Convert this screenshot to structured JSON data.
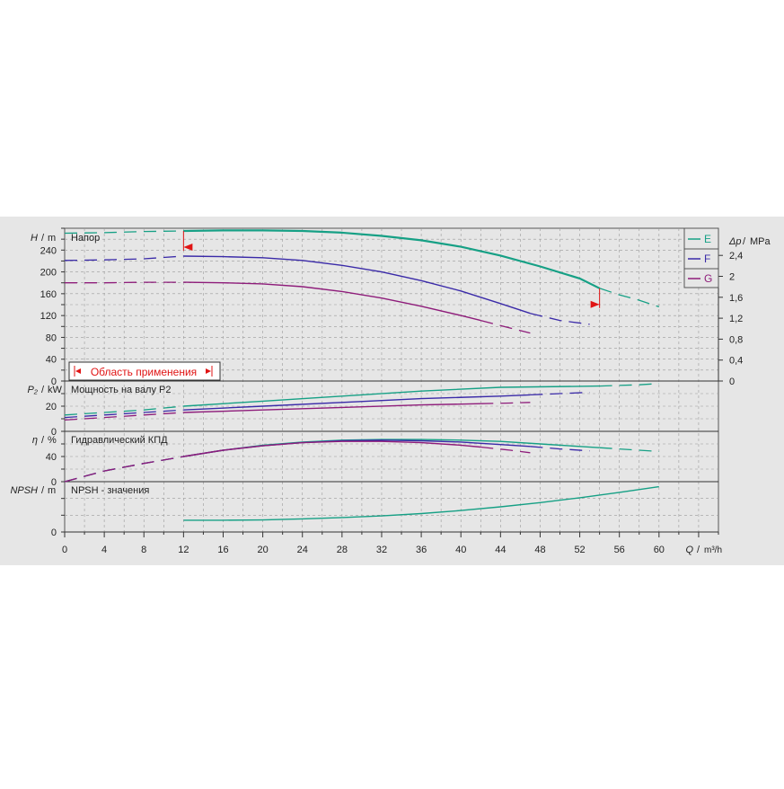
{
  "chart_data": {
    "type": "line",
    "x": {
      "label": "Q",
      "unit": "m³/h",
      "range": [
        0,
        66
      ],
      "ticks": [
        0,
        4,
        8,
        12,
        16,
        20,
        24,
        28,
        32,
        36,
        40,
        44,
        48,
        52,
        56,
        60
      ]
    },
    "legend": {
      "placement": "top-right",
      "items": [
        {
          "name": "E",
          "color": "#16a085"
        },
        {
          "name": "F",
          "color": "#3a2aa8"
        },
        {
          "name": "G",
          "color": "#8e1c7a"
        }
      ]
    },
    "panels": {
      "head": {
        "title": "Напор",
        "ylabel": "H",
        "yunit": "m",
        "ylim": [
          0,
          280
        ],
        "yticks": [
          0,
          40,
          80,
          120,
          160,
          200,
          240
        ],
        "right_axis": {
          "label": "Δp",
          "unit": "MPa",
          "ticks": [
            "0",
            "0,4",
            "0,8",
            "1,2",
            "1,6",
            "2",
            "2,4"
          ]
        },
        "range_box": "Область применения",
        "operating_range": [
          12,
          54
        ],
        "series": [
          {
            "name": "E",
            "solid": [
              [
                12,
                275
              ],
              [
                16,
                276
              ],
              [
                20,
                276
              ],
              [
                24,
                275
              ],
              [
                28,
                272
              ],
              [
                32,
                266
              ],
              [
                36,
                258
              ],
              [
                40,
                246
              ],
              [
                44,
                230
              ],
              [
                48,
                210
              ],
              [
                52,
                188
              ],
              [
                54,
                170
              ]
            ],
            "dashed_left": [
              [
                0,
                271
              ],
              [
                4,
                272
              ],
              [
                8,
                274
              ],
              [
                12,
                275
              ]
            ],
            "dashed_right": [
              [
                54,
                170
              ],
              [
                56,
                158
              ],
              [
                58,
                148
              ],
              [
                60,
                136
              ]
            ]
          },
          {
            "name": "F",
            "solid": [
              [
                12,
                229
              ],
              [
                16,
                228
              ],
              [
                20,
                226
              ],
              [
                24,
                221
              ],
              [
                28,
                212
              ],
              [
                32,
                200
              ],
              [
                36,
                184
              ],
              [
                40,
                165
              ],
              [
                44,
                142
              ],
              [
                47,
                124
              ]
            ],
            "dashed_left": [
              [
                0,
                221
              ],
              [
                4,
                222
              ],
              [
                8,
                224
              ],
              [
                12,
                229
              ]
            ],
            "dashed_right": [
              [
                47,
                124
              ],
              [
                50,
                111
              ],
              [
                53,
                104
              ]
            ]
          },
          {
            "name": "G",
            "solid": [
              [
                12,
                181
              ],
              [
                16,
                180
              ],
              [
                20,
                178
              ],
              [
                24,
                173
              ],
              [
                28,
                164
              ],
              [
                32,
                152
              ],
              [
                36,
                137
              ],
              [
                40,
                120
              ],
              [
                42,
                111
              ]
            ],
            "dashed_left": [
              [
                0,
                180
              ],
              [
                4,
                180
              ],
              [
                8,
                181
              ],
              [
                12,
                181
              ]
            ],
            "dashed_right": [
              [
                42,
                111
              ],
              [
                45,
                97
              ],
              [
                47,
                88
              ]
            ]
          }
        ]
      },
      "power": {
        "title": "Мощность на валу P2",
        "ylabel": "P₂",
        "yunit": "kW",
        "ylim": [
          0,
          40
        ],
        "yticks": [
          0,
          20
        ],
        "series": [
          {
            "name": "E",
            "solid": [
              [
                12,
                20
              ],
              [
                20,
                24
              ],
              [
                28,
                28
              ],
              [
                36,
                32
              ],
              [
                44,
                35
              ],
              [
                54,
                36
              ]
            ],
            "dashed_left": [
              [
                0,
                13
              ],
              [
                4,
                15
              ],
              [
                8,
                17
              ],
              [
                12,
                20
              ]
            ],
            "dashed_right": [
              [
                54,
                36
              ],
              [
                58,
                37
              ],
              [
                60,
                38
              ]
            ]
          },
          {
            "name": "F",
            "solid": [
              [
                12,
                17
              ],
              [
                20,
                20
              ],
              [
                28,
                23
              ],
              [
                36,
                26
              ],
              [
                44,
                28
              ],
              [
                47,
                29
              ]
            ],
            "dashed_left": [
              [
                0,
                11
              ],
              [
                4,
                13
              ],
              [
                8,
                15
              ],
              [
                12,
                17
              ]
            ],
            "dashed_right": [
              [
                47,
                29
              ],
              [
                50,
                30
              ],
              [
                53,
                31
              ]
            ]
          },
          {
            "name": "G",
            "solid": [
              [
                12,
                15
              ],
              [
                20,
                17
              ],
              [
                28,
                19
              ],
              [
                36,
                21
              ],
              [
                42,
                22
              ]
            ],
            "dashed_left": [
              [
                0,
                9
              ],
              [
                4,
                11
              ],
              [
                8,
                13
              ],
              [
                12,
                15
              ]
            ],
            "dashed_right": [
              [
                42,
                22
              ],
              [
                45,
                22.5
              ],
              [
                47,
                23
              ]
            ]
          }
        ]
      },
      "efficiency": {
        "title": "Гидравлический КПД",
        "ylabel": "η",
        "yunit": "%",
        "ylim": [
          0,
          80
        ],
        "yticks": [
          0,
          40
        ],
        "series": [
          {
            "name": "E",
            "solid": [
              [
                12,
                40
              ],
              [
                16,
                50
              ],
              [
                20,
                58
              ],
              [
                24,
                63
              ],
              [
                28,
                66
              ],
              [
                32,
                67
              ],
              [
                36,
                67
              ],
              [
                40,
                66
              ],
              [
                44,
                64
              ],
              [
                48,
                60
              ],
              [
                52,
                56
              ],
              [
                54,
                54
              ]
            ],
            "dashed_left": [
              [
                0,
                0
              ],
              [
                4,
                17
              ],
              [
                8,
                29
              ],
              [
                12,
                40
              ]
            ],
            "dashed_right": [
              [
                54,
                54
              ],
              [
                58,
                50
              ],
              [
                60,
                48
              ]
            ]
          },
          {
            "name": "F",
            "solid": [
              [
                12,
                40
              ],
              [
                16,
                50
              ],
              [
                20,
                57
              ],
              [
                24,
                62
              ],
              [
                28,
                65
              ],
              [
                32,
                66
              ],
              [
                36,
                65
              ],
              [
                40,
                63
              ],
              [
                44,
                59
              ],
              [
                47,
                56
              ]
            ],
            "dashed_left": [
              [
                0,
                0
              ],
              [
                4,
                17
              ],
              [
                8,
                29
              ],
              [
                12,
                40
              ]
            ],
            "dashed_right": [
              [
                47,
                56
              ],
              [
                50,
                52
              ],
              [
                53,
                49
              ]
            ]
          },
          {
            "name": "G",
            "solid": [
              [
                12,
                40
              ],
              [
                16,
                50
              ],
              [
                20,
                57
              ],
              [
                24,
                62
              ],
              [
                28,
                64
              ],
              [
                32,
                64
              ],
              [
                36,
                62
              ],
              [
                40,
                58
              ],
              [
                42,
                55
              ]
            ],
            "dashed_left": [
              [
                0,
                0
              ],
              [
                4,
                17
              ],
              [
                8,
                29
              ],
              [
                12,
                40
              ]
            ],
            "dashed_right": [
              [
                42,
                55
              ],
              [
                45,
                50
              ],
              [
                47,
                46
              ]
            ]
          }
        ]
      },
      "npsh": {
        "title": "NPSH - значения",
        "ylabel": "NPSH",
        "yunit": "m",
        "ylim": [
          0,
          30
        ],
        "yticks": [
          0
        ],
        "series": [
          {
            "name": "E",
            "solid": [
              [
                12,
                7
              ],
              [
                16,
                7
              ],
              [
                20,
                7.2
              ],
              [
                24,
                7.8
              ],
              [
                28,
                8.6
              ],
              [
                32,
                9.6
              ],
              [
                36,
                11
              ],
              [
                40,
                12.8
              ],
              [
                44,
                15
              ],
              [
                48,
                17.5
              ],
              [
                52,
                20.4
              ],
              [
                56,
                23.6
              ],
              [
                60,
                27
              ]
            ]
          }
        ]
      }
    }
  }
}
